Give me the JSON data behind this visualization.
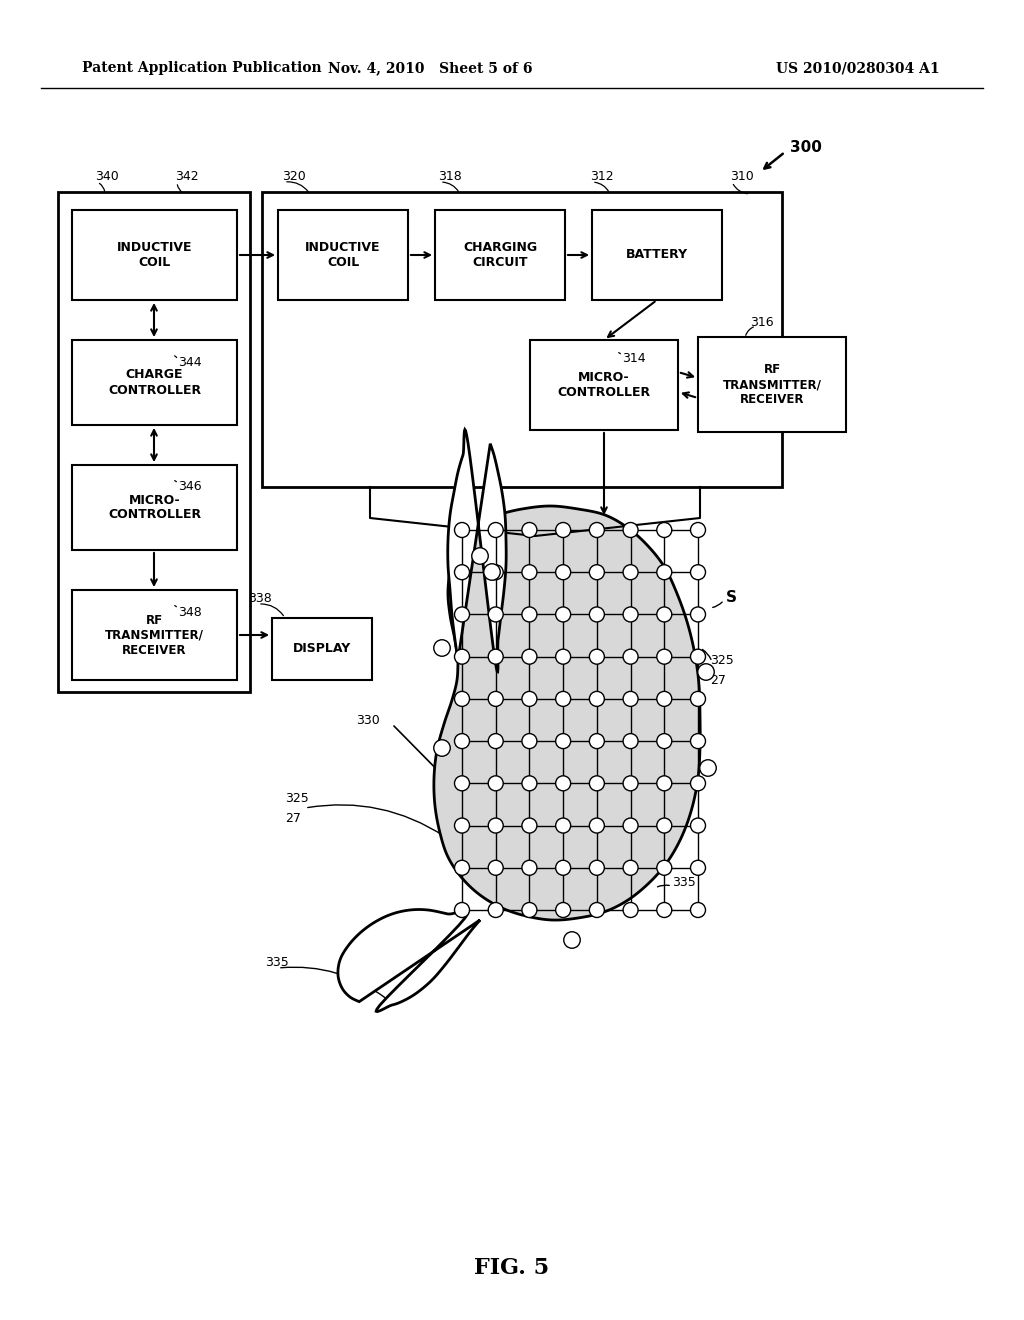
{
  "bg_color": "#ffffff",
  "header_left": "Patent Application Publication",
  "header_mid": "Nov. 4, 2010   Sheet 5 of 6",
  "header_right": "US 2010/0280304 A1",
  "fig_label": "FIG. 5",
  "fig_number": "300"
}
